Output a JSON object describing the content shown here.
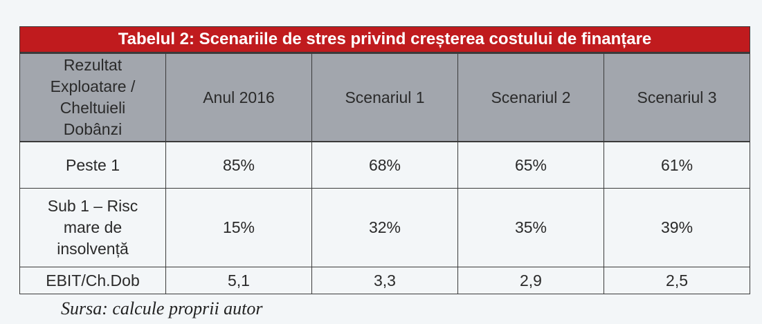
{
  "table": {
    "title": "Tabelul 2: Scenariile de stres privind creșterea costului de finanțare",
    "header": {
      "first_col": [
        "Rezultat",
        "Exploatare /",
        "Cheltuieli",
        "Dobânzi"
      ],
      "columns": [
        "Anul 2016",
        "Scenariul 1",
        "Scenariul 2",
        "Scenariul 3"
      ]
    },
    "rows": [
      {
        "label": [
          "Peste 1"
        ],
        "values": [
          "85%",
          "68%",
          "65%",
          "61%"
        ]
      },
      {
        "label": [
          "Sub 1 – Risc",
          "mare de",
          "insolvență"
        ],
        "values": [
          "15%",
          "32%",
          "35%",
          "39%"
        ]
      },
      {
        "label": [
          "EBIT/Ch.Dob"
        ],
        "values": [
          "5,1",
          "3,3",
          "2,9",
          "2,5"
        ]
      }
    ]
  },
  "source": "Sursa: calcule proprii autor",
  "colors": {
    "title_bg": "#c01b1e",
    "header_bg": "#a2a6ad",
    "page_bg": "#f3f6f8"
  }
}
